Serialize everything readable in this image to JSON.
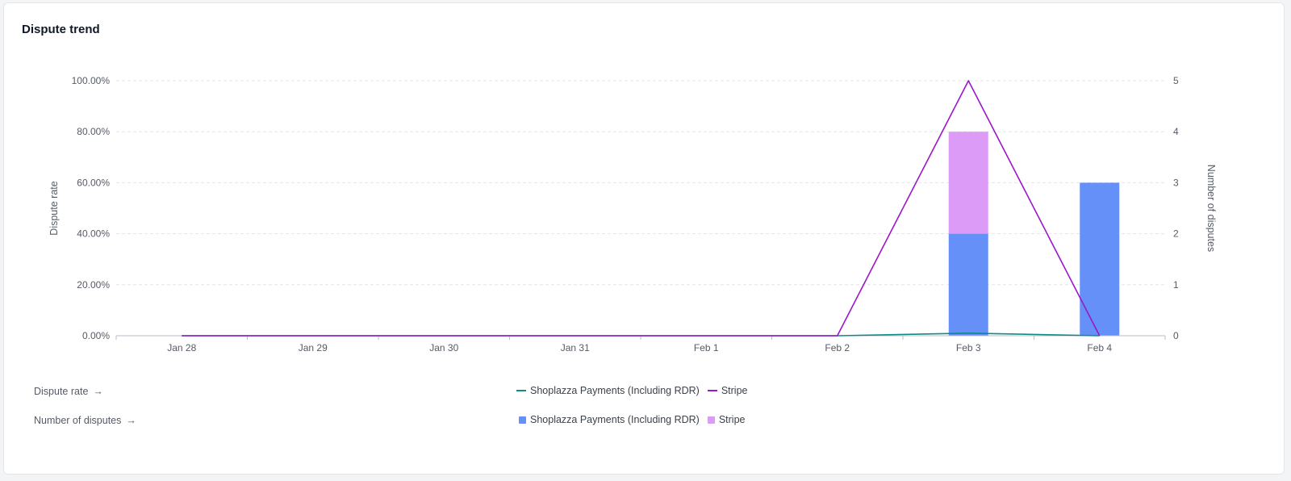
{
  "card": {
    "title": "Dispute trend"
  },
  "chart_data": {
    "type": "bar",
    "categories": [
      "Jan 28",
      "Jan 29",
      "Jan 30",
      "Jan 31",
      "Feb 1",
      "Feb 2",
      "Feb 3",
      "Feb 4"
    ],
    "left_axis": {
      "label": "Dispute rate",
      "ylim": [
        0,
        100
      ],
      "ticks": [
        "0.00%",
        "20.00%",
        "40.00%",
        "60.00%",
        "80.00%",
        "100.00%"
      ]
    },
    "right_axis": {
      "label": "Number of disputes",
      "ylim": [
        0,
        5
      ],
      "ticks": [
        "0",
        "1",
        "2",
        "3",
        "4",
        "5"
      ]
    },
    "line_series": [
      {
        "name": "Shoplazza Payments (Including RDR)",
        "color": "#0f8a8a",
        "axis": "left",
        "values": [
          0,
          0,
          0,
          0,
          0,
          0,
          1,
          0
        ]
      },
      {
        "name": "Stripe",
        "color": "#9b17c9",
        "axis": "left",
        "values": [
          0,
          0,
          0,
          0,
          0,
          0,
          100,
          0
        ]
      }
    ],
    "bar_series": [
      {
        "name": "Shoplazza Payments (Including RDR)",
        "color": "#6490f7",
        "axis": "right",
        "values": [
          0,
          0,
          0,
          0,
          0,
          0,
          2,
          3
        ]
      },
      {
        "name": "Stripe",
        "color": "#dd9bf8",
        "axis": "right",
        "values": [
          0,
          0,
          0,
          0,
          0,
          0,
          2,
          0
        ]
      }
    ],
    "grid": true,
    "stacked_bars": true
  },
  "legend": {
    "rate_row_label": "Dispute rate",
    "count_row_label": "Number of disputes",
    "arrow": "→",
    "rate_items": [
      {
        "label": "Shoplazza Payments (Including RDR)",
        "color": "#0f8a8a"
      },
      {
        "label": "Stripe",
        "color": "#9b17c9"
      }
    ],
    "count_items": [
      {
        "label": "Shoplazza Payments (Including RDR)",
        "color": "#6490f7"
      },
      {
        "label": "Stripe",
        "color": "#dd9bf8"
      }
    ]
  }
}
